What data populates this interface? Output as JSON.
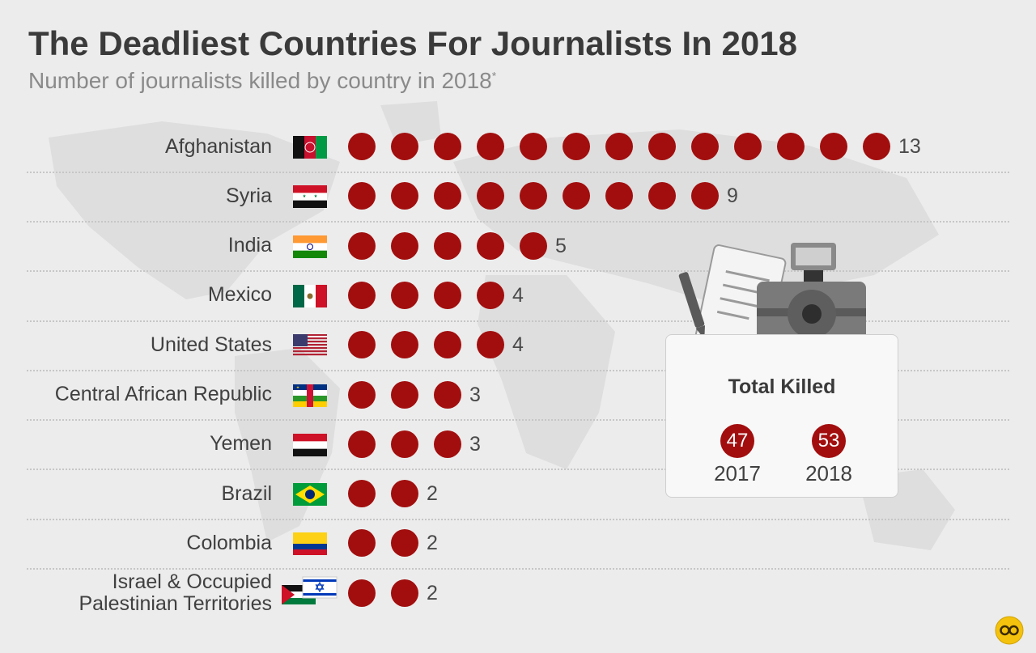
{
  "title": "The Deadliest Countries For Journalists In 2018",
  "subtitle": "Number of journalists killed by country in 2018",
  "subtitle_mark": "*",
  "colors": {
    "dot": "#a20e0e",
    "background": "#ececec",
    "text": "#404040"
  },
  "chart_data": {
    "type": "bar",
    "title": "The Deadliest Countries For Journalists In 2018",
    "subtitle": "Number of journalists killed by country in 2018*",
    "categories": [
      "Afghanistan",
      "Syria",
      "India",
      "Mexico",
      "United States",
      "Central African Republic",
      "Yemen",
      "Brazil",
      "Colombia",
      "Israel & Occupied Palestinian Territories"
    ],
    "values": [
      13,
      9,
      5,
      4,
      4,
      3,
      3,
      2,
      2,
      2
    ],
    "rows": [
      {
        "label": "Afghanistan",
        "value": 13,
        "flag": "afghanistan-flag-icon"
      },
      {
        "label": "Syria",
        "value": 9,
        "flag": "syria-flag-icon"
      },
      {
        "label": "India",
        "value": 5,
        "flag": "india-flag-icon"
      },
      {
        "label": "Mexico",
        "value": 4,
        "flag": "mexico-flag-icon"
      },
      {
        "label": "United States",
        "value": 4,
        "flag": "usa-flag-icon"
      },
      {
        "label": "Central African Republic",
        "value": 3,
        "flag": "car-flag-icon"
      },
      {
        "label": "Yemen",
        "value": 3,
        "flag": "yemen-flag-icon"
      },
      {
        "label": "Brazil",
        "value": 2,
        "flag": "brazil-flag-icon"
      },
      {
        "label": "Colombia",
        "value": 2,
        "flag": "colombia-flag-icon"
      },
      {
        "label": "Israel & Occupied Palestinian Territories",
        "label_lines": [
          "Israel & Occupied",
          "Palestinian Territories"
        ],
        "value": 2,
        "flag": "israel-palestine-flags-icon"
      }
    ]
  },
  "summary": {
    "title": "Total Killed",
    "items": [
      {
        "value": "47",
        "year": "2017"
      },
      {
        "value": "53",
        "year": "2018"
      }
    ],
    "illustration": "camera-notepad-pen-icon"
  },
  "logo": "statista-logo-icon"
}
